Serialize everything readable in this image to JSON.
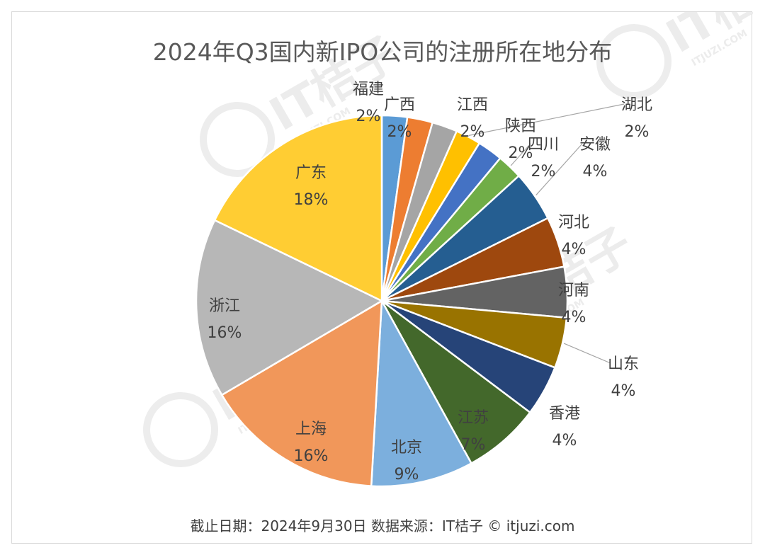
{
  "chart_data": {
    "type": "pie",
    "title": "2024年Q3国内新IPO公司的注册所在地分布",
    "slices": [
      {
        "label": "福建",
        "percent_label": "2%",
        "value": 2.2,
        "color": "#5b9bd5"
      },
      {
        "label": "广西",
        "percent_label": "2%",
        "value": 2.2,
        "color": "#ed7d31"
      },
      {
        "label": "江西",
        "percent_label": "2%",
        "value": 2.2,
        "color": "#a5a5a5"
      },
      {
        "label": "湖北",
        "percent_label": "2%",
        "value": 2.2,
        "color": "#ffc000"
      },
      {
        "label": "陕西",
        "percent_label": "2%",
        "value": 2.2,
        "color": "#4472c4"
      },
      {
        "label": "四川",
        "percent_label": "2%",
        "value": 2.2,
        "color": "#70ad47"
      },
      {
        "label": "安徽",
        "percent_label": "4%",
        "value": 4.4,
        "color": "#255e91"
      },
      {
        "label": "河北",
        "percent_label": "4%",
        "value": 4.4,
        "color": "#9e480e"
      },
      {
        "label": "河南",
        "percent_label": "4%",
        "value": 4.4,
        "color": "#636363"
      },
      {
        "label": "山东",
        "percent_label": "4%",
        "value": 4.4,
        "color": "#997300"
      },
      {
        "label": "香港",
        "percent_label": "4%",
        "value": 4.4,
        "color": "#264478"
      },
      {
        "label": "江苏",
        "percent_label": "7%",
        "value": 6.7,
        "color": "#43682b"
      },
      {
        "label": "北京",
        "percent_label": "9%",
        "value": 8.9,
        "color": "#7cafdd"
      },
      {
        "label": "上海",
        "percent_label": "16%",
        "value": 15.6,
        "color": "#f1975a"
      },
      {
        "label": "浙江",
        "percent_label": "16%",
        "value": 15.6,
        "color": "#b7b7b7"
      },
      {
        "label": "广东",
        "percent_label": "18%",
        "value": 17.8,
        "color": "#ffcd33"
      }
    ],
    "legend": "none"
  },
  "footer": {
    "text": "截止日期：2024年9月30日    数据来源：IT桔子 © itjuzi.com"
  },
  "watermark": {
    "text": "IT桔子",
    "subtext": "ITJUZI.COM"
  }
}
